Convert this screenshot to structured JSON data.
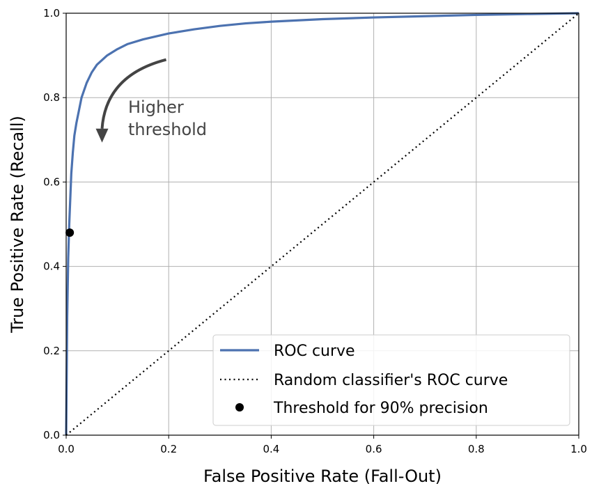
{
  "chart_data": {
    "type": "line",
    "title": "",
    "xlabel": "False Positive Rate (Fall-Out)",
    "ylabel": "True Positive Rate (Recall)",
    "xlim": [
      0.0,
      1.0
    ],
    "ylim": [
      0.0,
      1.0
    ],
    "xticks": [
      "0.0",
      "0.2",
      "0.4",
      "0.6",
      "0.8",
      "1.0"
    ],
    "yticks": [
      "0.0",
      "0.2",
      "0.4",
      "0.6",
      "0.8",
      "1.0"
    ],
    "grid": true,
    "legend_position": "lower-right",
    "series": [
      {
        "name": "ROC curve",
        "style": "solid",
        "color": "#4c72b0",
        "x": [
          0.0,
          0.002,
          0.004,
          0.006,
          0.008,
          0.01,
          0.013,
          0.016,
          0.02,
          0.025,
          0.03,
          0.04,
          0.05,
          0.06,
          0.08,
          0.1,
          0.12,
          0.15,
          0.2,
          0.25,
          0.3,
          0.35,
          0.4,
          0.5,
          0.6,
          0.7,
          0.8,
          0.9,
          1.0
        ],
        "y": [
          0.0,
          0.28,
          0.42,
          0.5,
          0.56,
          0.62,
          0.67,
          0.71,
          0.74,
          0.77,
          0.8,
          0.835,
          0.86,
          0.878,
          0.9,
          0.915,
          0.927,
          0.938,
          0.952,
          0.962,
          0.97,
          0.976,
          0.98,
          0.986,
          0.99,
          0.993,
          0.996,
          0.998,
          1.0
        ]
      },
      {
        "name": "Random classifier's ROC curve",
        "style": "dotted",
        "color": "#000000",
        "x": [
          0.0,
          1.0
        ],
        "y": [
          0.0,
          1.0
        ]
      },
      {
        "name": "Threshold for 90% precision",
        "style": "marker",
        "color": "#000000",
        "x": [
          0.007
        ],
        "y": [
          0.48
        ]
      }
    ],
    "annotations": [
      {
        "text_lines": [
          "Higher",
          "threshold"
        ],
        "arrow_from": [
          0.195,
          0.89
        ],
        "arrow_to": [
          0.07,
          0.7
        ]
      }
    ]
  }
}
